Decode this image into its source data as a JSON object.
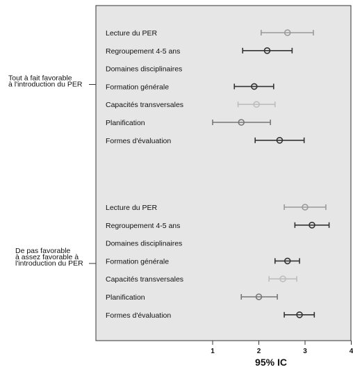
{
  "chart_data": {
    "type": "errorbar",
    "xlabel": "95% IC",
    "xlim": [
      0,
      4
    ],
    "xticks": [
      1,
      2,
      3,
      4
    ],
    "grid": false,
    "background": "#e6e6e6",
    "groups": [
      {
        "label_lines": [
          "Tout à fait favorable",
          "à l'introduction du PER"
        ],
        "rows": [
          {
            "category": "Lecture du PER",
            "mean": 2.62,
            "low": 2.05,
            "high": 3.18,
            "color": "#9a9a9a"
          },
          {
            "category": "Regroupement 4-5 ans",
            "mean": 2.18,
            "low": 1.65,
            "high": 2.72,
            "color": "#333333"
          },
          {
            "category": "Domaines disciplinaires",
            "mean": null,
            "low": null,
            "high": null,
            "color": "#333333"
          },
          {
            "category": "Formation générale",
            "mean": 1.9,
            "low": 1.47,
            "high": 2.32,
            "color": "#333333"
          },
          {
            "category": "Capacités transversales",
            "mean": 1.95,
            "low": 1.55,
            "high": 2.35,
            "color": "#bdbdbd"
          },
          {
            "category": "Planification",
            "mean": 1.62,
            "low": 1.0,
            "high": 2.25,
            "color": "#777777"
          },
          {
            "category": "Formes d'évaluation",
            "mean": 2.45,
            "low": 1.92,
            "high": 2.98,
            "color": "#333333"
          }
        ]
      },
      {
        "label_lines": [
          "De pas favorable",
          "à assez favorable à",
          "l'introduction du PER"
        ],
        "rows": [
          {
            "category": "Lecture du PER",
            "mean": 3.0,
            "low": 2.55,
            "high": 3.45,
            "color": "#9a9a9a"
          },
          {
            "category": "Regroupement 4-5 ans",
            "mean": 3.15,
            "low": 2.78,
            "high": 3.52,
            "color": "#333333"
          },
          {
            "category": "Domaines disciplinaires",
            "mean": null,
            "low": null,
            "high": null,
            "color": "#333333"
          },
          {
            "category": "Formation générale",
            "mean": 2.62,
            "low": 2.35,
            "high": 2.88,
            "color": "#333333"
          },
          {
            "category": "Capacités transversales",
            "mean": 2.52,
            "low": 2.22,
            "high": 2.82,
            "color": "#bdbdbd"
          },
          {
            "category": "Planification",
            "mean": 2.0,
            "low": 1.62,
            "high": 2.4,
            "color": "#777777"
          },
          {
            "category": "Formes d'évaluation",
            "mean": 2.88,
            "low": 2.55,
            "high": 3.2,
            "color": "#333333"
          }
        ]
      }
    ]
  }
}
